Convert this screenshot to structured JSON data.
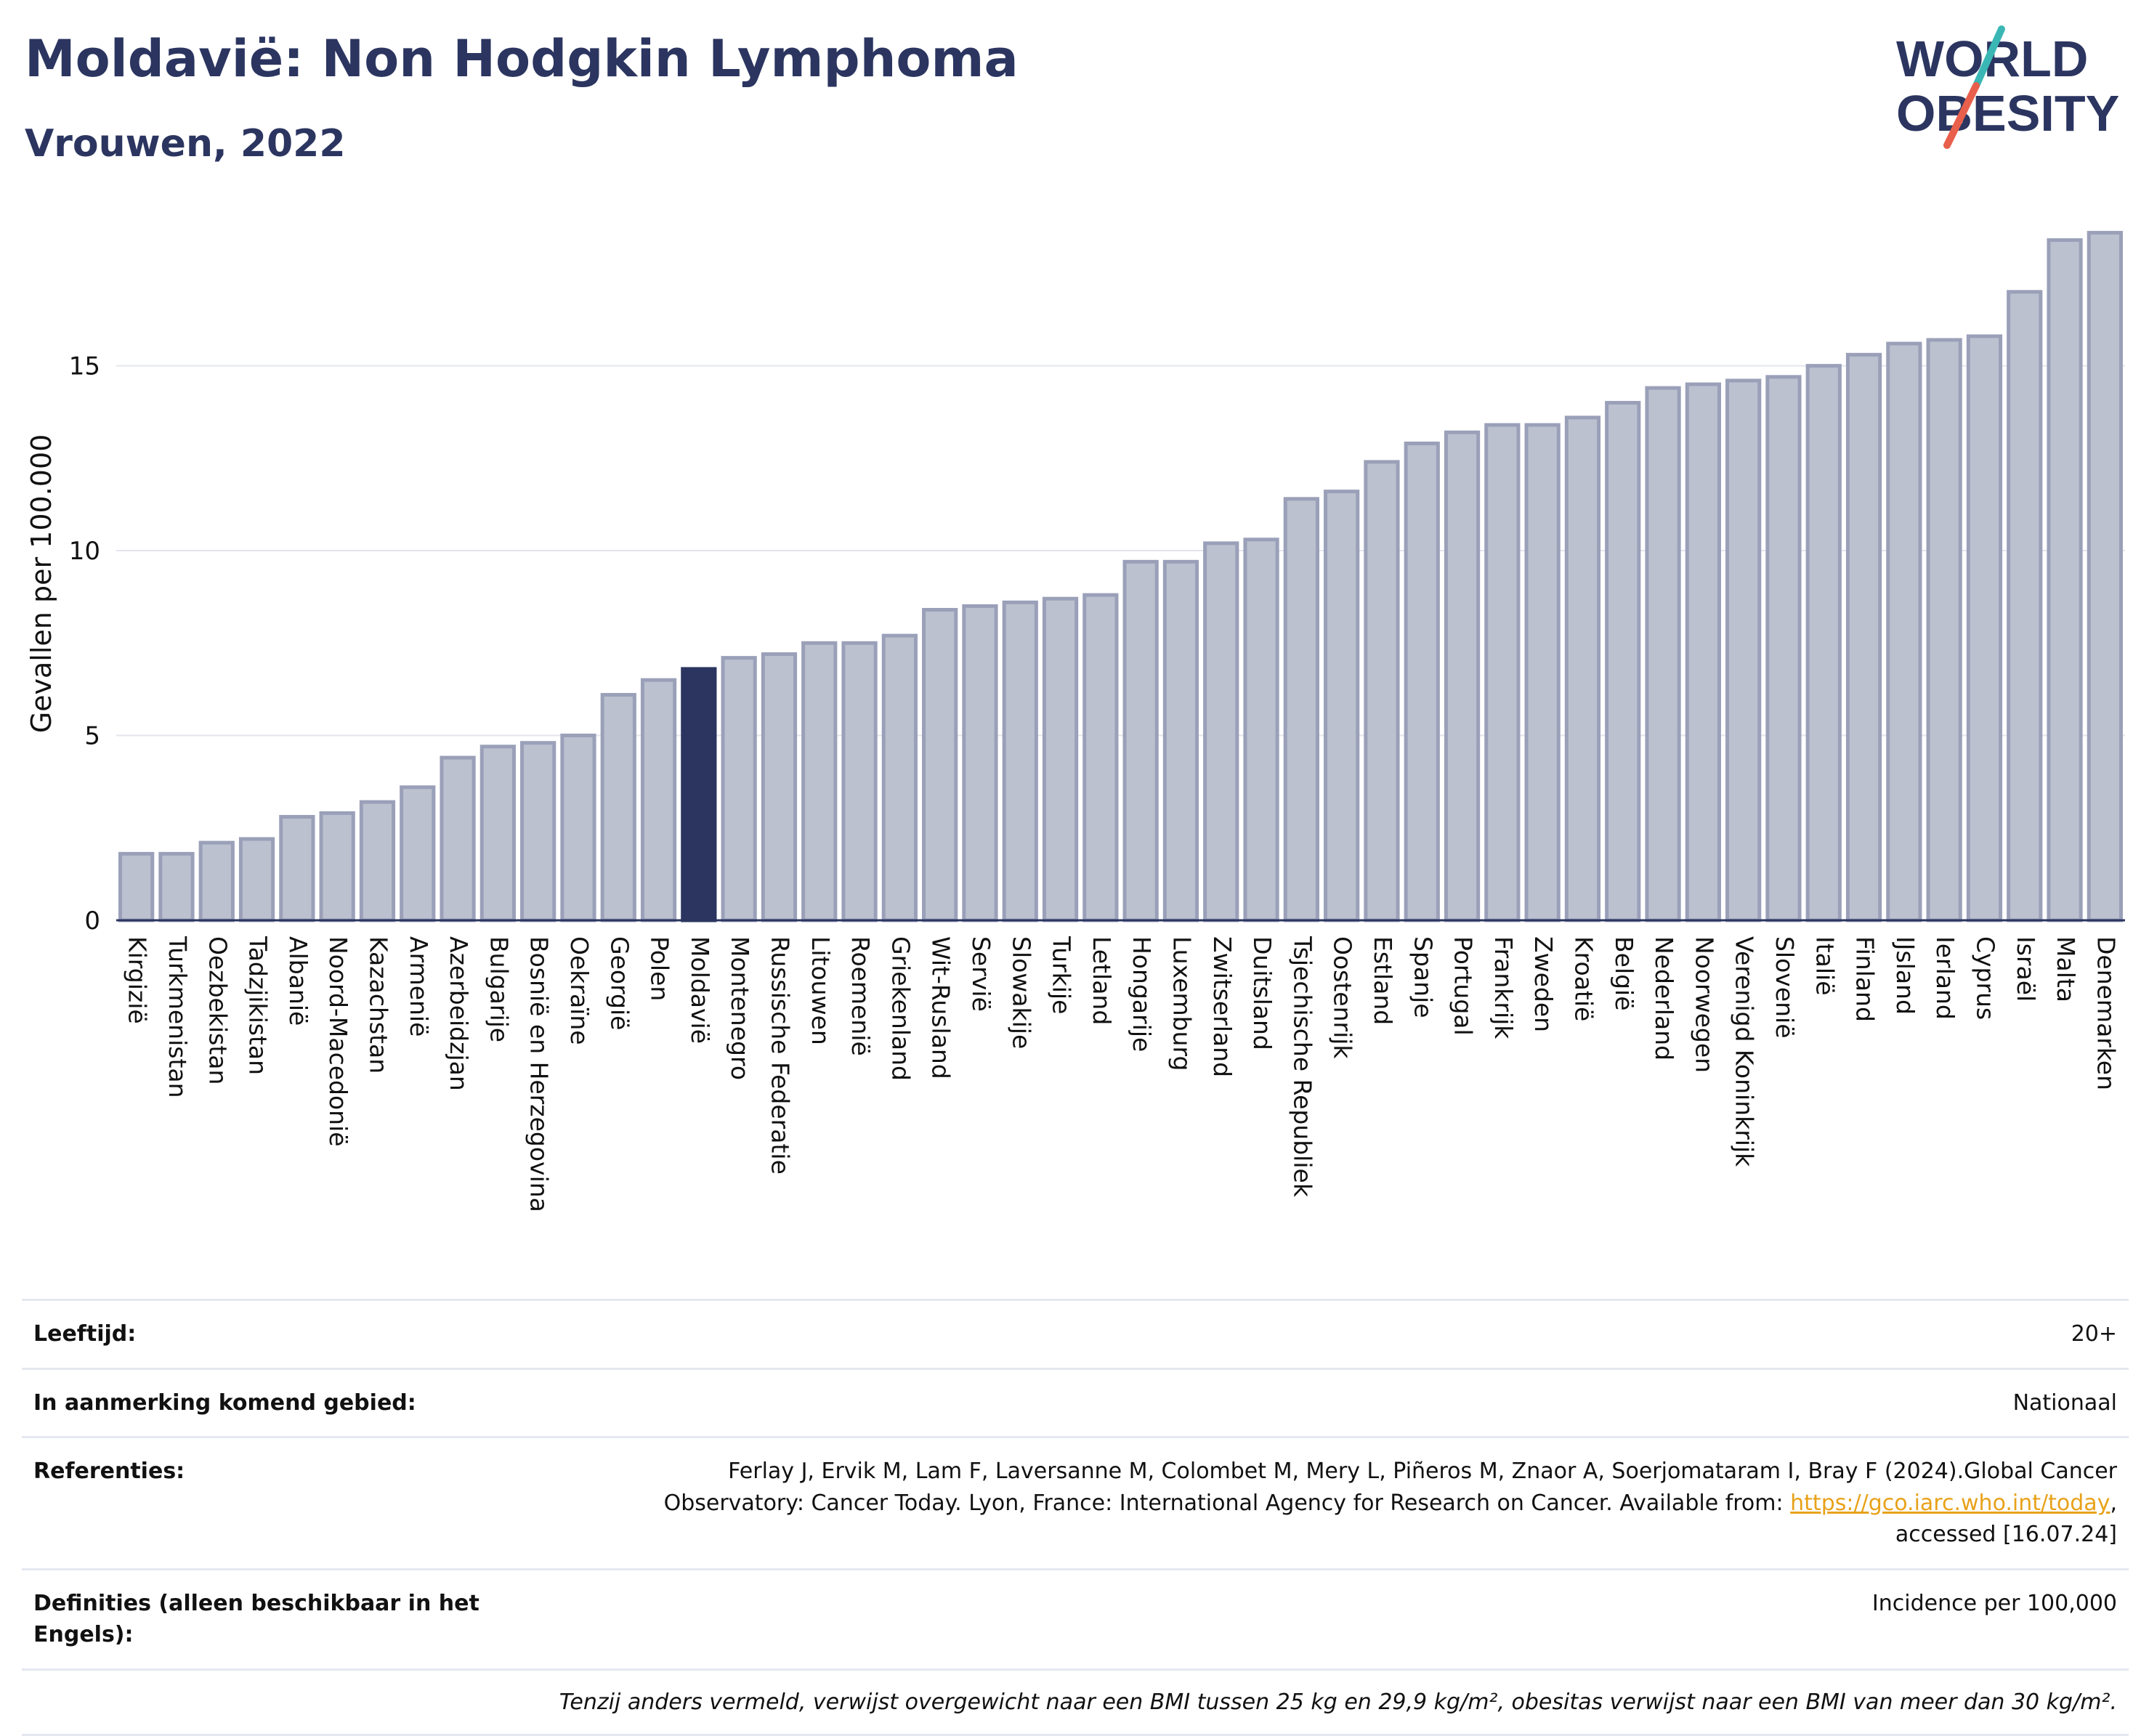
{
  "header": {
    "title": "Moldavië: Non Hodgkin Lymphoma",
    "subtitle": "Vrouwen, 2022"
  },
  "logo": {
    "line1": "WORLD",
    "line2": "OBESITY",
    "accent_teal": "#3ab7b5",
    "accent_red": "#e8604c"
  },
  "colors": {
    "bar": "#bcc1d0",
    "bar_border": "#9aa0b8",
    "highlight": "#2b3560",
    "text": "#2b3560",
    "link": "#e8a21a"
  },
  "chart_data": {
    "type": "bar",
    "ylabel": "Gevallen per 100.000",
    "ylim": [
      0,
      19
    ],
    "yticks": [
      0,
      5,
      10,
      15
    ],
    "grid": true,
    "highlight": "Moldavië",
    "categories": [
      "Kirgizië",
      "Turkmenistan",
      "Oezbekistan",
      "Tadzjikistan",
      "Albanië",
      "Noord-Macedonië",
      "Kazachstan",
      "Armenië",
      "Azerbeidzjan",
      "Bulgarije",
      "Bosnië en Herzegovina",
      "Oekraïne",
      "Georgië",
      "Polen",
      "Moldavië",
      "Montenegro",
      "Russische Federatie",
      "Litouwen",
      "Roemenië",
      "Griekenland",
      "Wit-Rusland",
      "Servië",
      "Slowakije",
      "Turkije",
      "Letland",
      "Hongarije",
      "Luxemburg",
      "Zwitserland",
      "Duitsland",
      "Tsjechische Republiek",
      "Oostenrijk",
      "Estland",
      "Spanje",
      "Portugal",
      "Frankrijk",
      "Zweden",
      "Kroatië",
      "België",
      "Nederland",
      "Noorwegen",
      "Verenigd Koninkrijk",
      "Slovenië",
      "Italië",
      "Finland",
      "IJsland",
      "Ierland",
      "Cyprus",
      "Israël",
      "Malta",
      "Denemarken"
    ],
    "values": [
      1.8,
      1.8,
      2.1,
      2.2,
      2.8,
      2.9,
      3.2,
      3.6,
      4.4,
      4.7,
      4.8,
      5.0,
      6.1,
      6.5,
      6.8,
      7.1,
      7.2,
      7.5,
      7.5,
      7.7,
      8.4,
      8.5,
      8.6,
      8.7,
      8.8,
      9.7,
      9.7,
      10.2,
      10.3,
      11.4,
      11.6,
      12.4,
      12.9,
      13.2,
      13.4,
      13.4,
      13.6,
      14.0,
      14.4,
      14.5,
      14.6,
      14.7,
      15.0,
      15.3,
      15.6,
      15.7,
      15.8,
      17.0,
      18.4,
      18.6
    ]
  },
  "info": {
    "age_label": "Leeftijd:",
    "age_value": "20+",
    "area_label": "In aanmerking komend gebied:",
    "area_value": "Nationaal",
    "ref_label": "Referenties:",
    "ref_text_1": "Ferlay J, Ervik M, Lam F, Laversanne M, Colombet M, Mery L, Piñeros M, Znaor A, Soerjomataram I, Bray F (2024).Global Cancer",
    "ref_text_2": "Observatory: Cancer Today. Lyon, France: International Agency for Research on Cancer. Available from: ",
    "ref_link": "https://gco.iarc.who.int/today",
    "ref_text_3": ",",
    "ref_text_4": "accessed [16.07.24]",
    "def_label": "Definities (alleen beschikbaar in het Engels):",
    "def_value": "Incidence per 100,000",
    "note": "Tenzij anders vermeld, verwijst overgewicht naar een BMI tussen 25 kg en 29,9 kg/m², obesitas verwijst naar een BMI van meer dan 30 kg/m²."
  }
}
